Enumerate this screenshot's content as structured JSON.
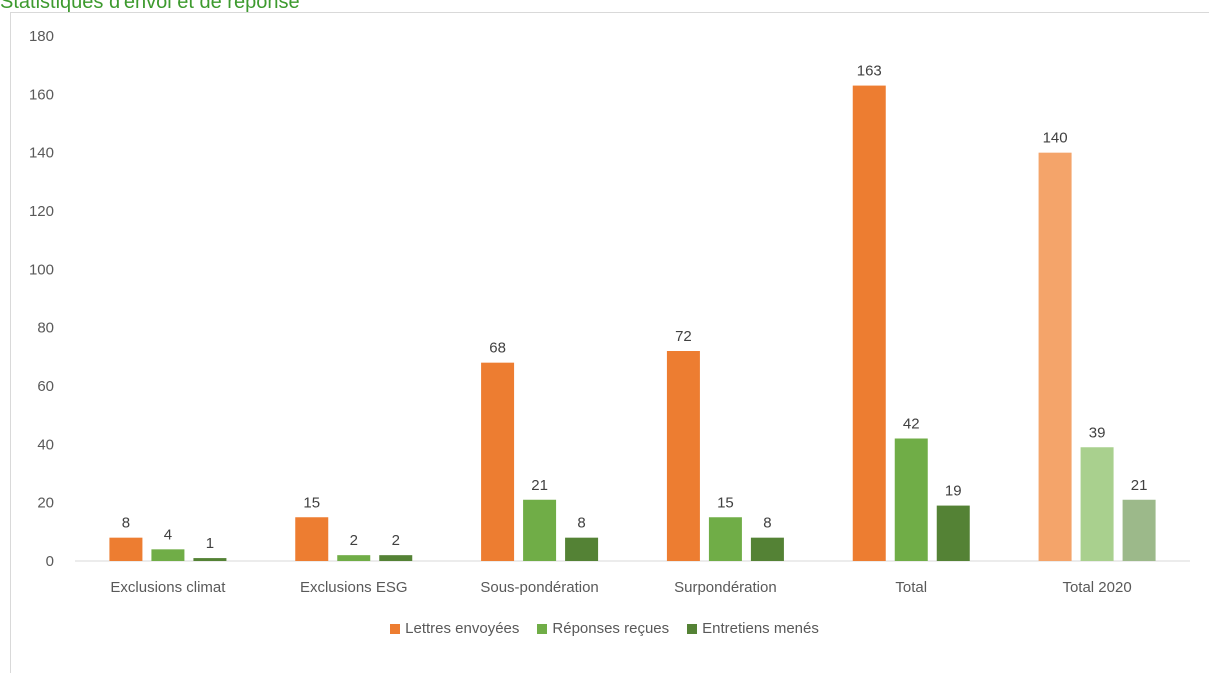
{
  "title": "Statistiques d'envoi et de réponse",
  "chart_data": {
    "type": "bar",
    "categories": [
      "Exclusions climat",
      "Exclusions ESG",
      "Sous-pondération",
      "Surpondération",
      "Total",
      "Total 2020"
    ],
    "series": [
      {
        "name": "Lettres envoyées",
        "values": [
          8,
          15,
          68,
          72,
          163,
          140
        ],
        "color": "#ed7d31"
      },
      {
        "name": "Réponses reçues",
        "values": [
          4,
          2,
          21,
          15,
          42,
          39
        ],
        "color": "#70ad47"
      },
      {
        "name": "Entretiens menés",
        "values": [
          1,
          2,
          8,
          8,
          19,
          21
        ],
        "color": "#548235"
      }
    ],
    "faded_category": "Total 2020",
    "faded_colors": [
      "#f4a46a",
      "#a9d08e",
      "#9cb98a"
    ],
    "ylim": [
      0,
      180
    ],
    "yticks": [
      0,
      20,
      40,
      60,
      80,
      100,
      120,
      140,
      160,
      180
    ],
    "data_labels": true,
    "legend_position": "bottom",
    "grid": false
  }
}
